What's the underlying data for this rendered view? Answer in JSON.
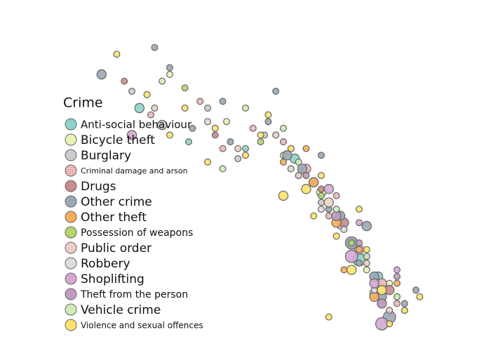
{
  "chart_data": {
    "type": "scatter",
    "legend_title": "Crime",
    "legend_position": "left",
    "xlim": [
      0,
      100
    ],
    "ylim": [
      0,
      100
    ],
    "series": [
      {
        "name": "Anti-social behaviour",
        "color": "#8dd3c7",
        "x": [
          22,
          35,
          50,
          63,
          72,
          80,
          85,
          68,
          90,
          58
        ],
        "values": [
          70,
          60,
          58,
          55,
          40,
          25,
          20,
          48,
          14,
          62
        ],
        "sizes": [
          3,
          2,
          2,
          3,
          2,
          4,
          3,
          2,
          2,
          2
        ]
      },
      {
        "name": "Bicycle theft",
        "color": "#e8f5b4",
        "x": [
          30,
          45,
          60,
          70,
          78,
          82,
          88,
          66
        ],
        "values": [
          80,
          66,
          56,
          45,
          30,
          22,
          18,
          50
        ],
        "sizes": [
          2,
          2,
          2,
          3,
          3,
          2,
          2,
          2
        ]
      },
      {
        "name": "Burglary",
        "color": "#cccccc",
        "x": [
          20,
          28,
          40,
          55,
          62,
          75,
          84,
          92,
          70,
          48
        ],
        "values": [
          75,
          65,
          70,
          62,
          58,
          35,
          15,
          10,
          42,
          55
        ],
        "sizes": [
          2,
          3,
          2,
          2,
          2,
          2,
          3,
          2,
          2,
          2
        ]
      },
      {
        "name": "Criminal damage and arson",
        "color": "#f2c4c4",
        "x": [
          25,
          38,
          52,
          66,
          74,
          80,
          86,
          72,
          60,
          90,
          44
        ],
        "values": [
          68,
          72,
          64,
          52,
          44,
          28,
          18,
          38,
          60,
          12,
          58
        ],
        "sizes": [
          2,
          2,
          2,
          3,
          2,
          3,
          3,
          2,
          2,
          2,
          2
        ]
      },
      {
        "name": "Drugs",
        "color": "#c98b8b",
        "x": [
          18,
          42,
          64,
          76,
          82,
          88,
          70
        ],
        "values": [
          78,
          62,
          50,
          36,
          26,
          16,
          46
        ],
        "sizes": [
          2,
          2,
          2,
          3,
          2,
          3,
          2
        ]
      },
      {
        "name": "Other crime",
        "color": "#9aa9b5",
        "x": [
          12,
          30,
          36,
          46,
          56,
          61,
          65,
          68,
          72,
          75,
          78,
          80,
          84,
          86,
          88,
          92,
          95,
          82,
          70,
          58,
          26,
          44
        ],
        "values": [
          80,
          82,
          64,
          60,
          66,
          56,
          52,
          48,
          40,
          38,
          30,
          24,
          20,
          14,
          8,
          12,
          16,
          35,
          56,
          75,
          88,
          72
        ],
        "sizes": [
          3,
          2,
          2,
          2,
          2,
          3,
          3,
          3,
          2,
          3,
          4,
          2,
          3,
          3,
          4,
          2,
          2,
          3,
          2,
          2,
          2,
          2
        ]
      },
      {
        "name": "Other theft",
        "color": "#f6ae5b",
        "x": [
          60,
          68,
          74,
          80,
          84,
          76,
          90,
          66
        ],
        "values": [
          54,
          48,
          36,
          28,
          14,
          22,
          18,
          58
        ],
        "sizes": [
          2,
          3,
          3,
          2,
          3,
          2,
          2,
          2
        ]
      },
      {
        "name": "Possession of weapons",
        "color": "#b5d56a",
        "x": [
          34,
          54,
          70,
          78,
          86,
          62
        ],
        "values": [
          76,
          60,
          44,
          30,
          12,
          52
        ],
        "sizes": [
          2,
          2,
          2,
          2,
          2,
          2
        ]
      },
      {
        "name": "Public order",
        "color": "#efd0c8",
        "x": [
          26,
          48,
          64,
          72,
          82,
          88,
          58
        ],
        "values": [
          70,
          58,
          50,
          42,
          24,
          10,
          62
        ],
        "sizes": [
          2,
          2,
          2,
          3,
          2,
          2,
          2
        ]
      },
      {
        "name": "Robbery",
        "color": "#e0dcdc",
        "x": [
          40,
          62,
          76,
          84,
          70
        ],
        "values": [
          66,
          52,
          34,
          16,
          40
        ],
        "sizes": [
          2,
          2,
          2,
          2,
          2
        ]
      },
      {
        "name": "Shoplifting",
        "color": "#d3a9d3",
        "x": [
          20,
          72,
          78,
          84,
          90,
          80,
          86
        ],
        "values": [
          62,
          46,
          26,
          18,
          22,
          36,
          6
        ],
        "sizes": [
          3,
          3,
          4,
          3,
          2,
          2,
          4
        ]
      },
      {
        "name": "Theft from the person",
        "color": "#c29bc2",
        "x": [
          66,
          74,
          80,
          86,
          90
        ],
        "values": [
          50,
          38,
          30,
          12,
          20
        ],
        "sizes": [
          2,
          3,
          2,
          3,
          2
        ]
      },
      {
        "name": "Vehicle crime",
        "color": "#d2ecb6",
        "x": [
          28,
          50,
          64,
          74,
          82,
          90,
          60,
          44
        ],
        "values": [
          78,
          70,
          54,
          40,
          26,
          14,
          64,
          52
        ],
        "sizes": [
          2,
          2,
          2,
          2,
          2,
          2,
          2,
          2
        ]
      },
      {
        "name": "Violence and sexual offences",
        "color": "#ffe36a",
        "x": [
          16,
          24,
          34,
          42,
          50,
          56,
          62,
          66,
          70,
          74,
          78,
          82,
          86,
          88,
          92,
          96,
          80,
          68,
          54,
          40,
          30,
          60,
          72
        ],
        "values": [
          86,
          74,
          70,
          64,
          56,
          68,
          58,
          46,
          50,
          32,
          22,
          28,
          16,
          6,
          10,
          14,
          40,
          38,
          62,
          54,
          62,
          44,
          8
        ],
        "sizes": [
          2,
          2,
          2,
          2,
          2,
          2,
          2,
          3,
          2,
          2,
          3,
          2,
          3,
          2,
          2,
          2,
          2,
          2,
          2,
          2,
          2,
          3,
          2
        ]
      }
    ]
  }
}
